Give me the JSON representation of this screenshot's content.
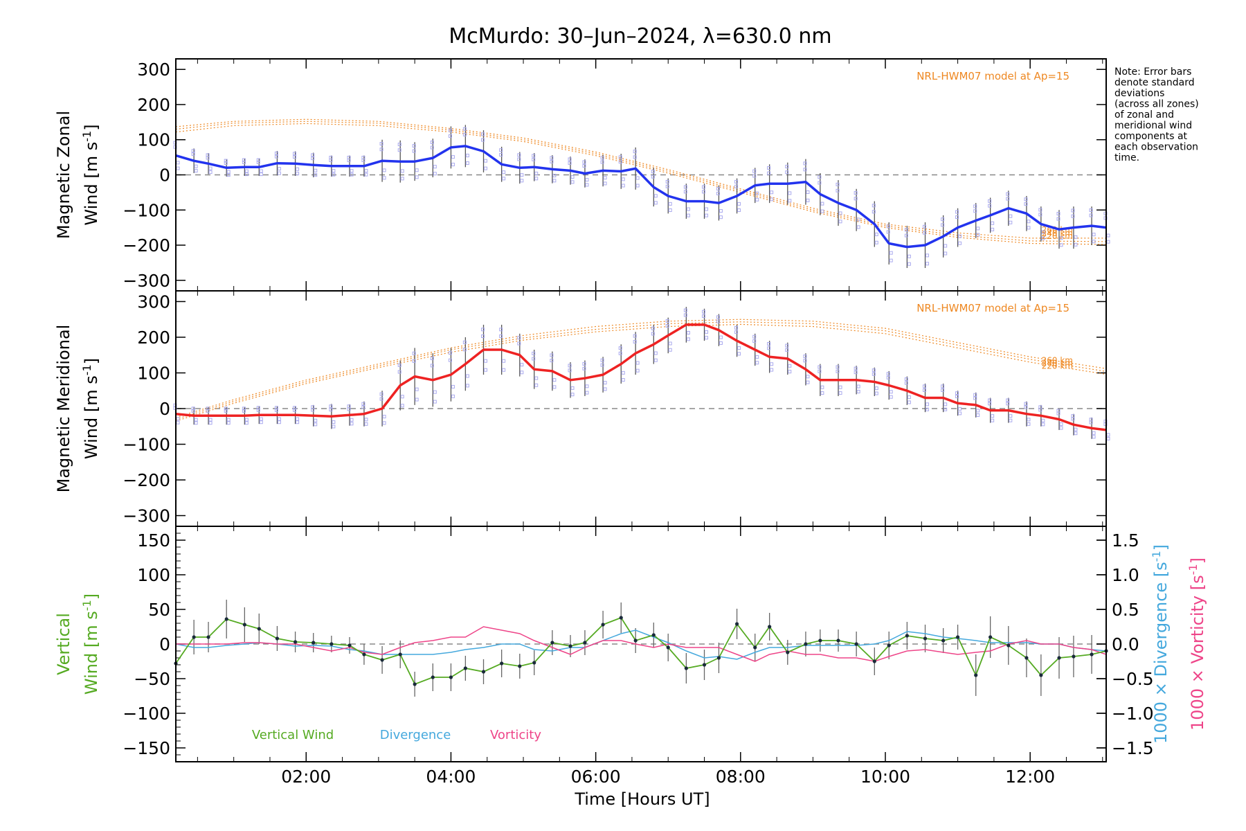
{
  "title": "McMurdo: 30–Jun–2024, λ=630.0 nm",
  "note": [
    "Note: Error bars",
    "denote standard",
    "deviations",
    "(across all zones)",
    "of zonal and",
    "meridional wind",
    "components at",
    "each observation",
    "time."
  ],
  "xaxis": {
    "label": "Time [Hours UT]",
    "range": [
      0.2,
      13.05
    ],
    "ticks": [
      2,
      4,
      6,
      8,
      10,
      12
    ],
    "tick_labels": [
      "02:00",
      "04:00",
      "06:00",
      "08:00",
      "10:00",
      "12:00"
    ]
  },
  "colors": {
    "zonal": "#2233ee",
    "meridional": "#ee2222",
    "model": "#ee8822",
    "vertical": "#55aa22",
    "divergence": "#44a8dd",
    "vorticity": "#ee4488",
    "zone_dots": "#aaaaee",
    "axis": "#000000"
  },
  "chart_data": [
    {
      "type": "line",
      "panel": "zonal",
      "ylabel": [
        "Magnetic Zonal",
        "Wind [m s",
        "-1",
        "]"
      ],
      "ylim": [
        -330,
        330
      ],
      "yticks": [
        -300,
        -200,
        -100,
        0,
        100,
        200,
        300
      ],
      "model_label": "NRL-HWM07 model at Ap=15",
      "model_altitudes": [
        "260 km",
        "240 km",
        "220 km"
      ],
      "x": [
        0.2,
        0.45,
        0.65,
        0.9,
        1.15,
        1.35,
        1.6,
        1.85,
        2.1,
        2.35,
        2.6,
        2.8,
        3.05,
        3.3,
        3.5,
        3.75,
        4.0,
        4.2,
        4.45,
        4.7,
        4.95,
        5.15,
        5.4,
        5.65,
        5.85,
        6.1,
        6.35,
        6.55,
        6.8,
        7.0,
        7.25,
        7.5,
        7.7,
        7.95,
        8.2,
        8.4,
        8.65,
        8.9,
        9.1,
        9.35,
        9.6,
        9.85,
        10.05,
        10.3,
        10.55,
        10.8,
        11.0,
        11.25,
        11.45,
        11.7,
        11.95,
        12.15,
        12.4,
        12.6,
        12.85,
        13.05
      ],
      "y": [
        55,
        40,
        32,
        20,
        22,
        22,
        33,
        32,
        28,
        25,
        25,
        25,
        40,
        38,
        38,
        48,
        78,
        82,
        67,
        30,
        20,
        22,
        16,
        12,
        4,
        12,
        10,
        18,
        -35,
        -60,
        -75,
        -75,
        -80,
        -60,
        -30,
        -25,
        -25,
        -20,
        -55,
        -80,
        -100,
        -140,
        -195,
        -205,
        -200,
        -175,
        -150,
        -130,
        -115,
        -95,
        -110,
        -140,
        -155,
        -150,
        -145,
        -150
      ],
      "err": [
        45,
        35,
        30,
        25,
        25,
        25,
        35,
        35,
        35,
        30,
        30,
        30,
        60,
        60,
        55,
        55,
        60,
        60,
        60,
        50,
        45,
        40,
        40,
        40,
        40,
        45,
        50,
        60,
        55,
        50,
        50,
        50,
        50,
        50,
        50,
        55,
        60,
        65,
        60,
        65,
        60,
        65,
        60,
        60,
        65,
        60,
        55,
        50,
        50,
        50,
        50,
        50,
        55,
        60,
        55,
        50
      ],
      "model": [
        {
          "altitude": "260 km",
          "x": [
            0.2,
            1,
            2,
            3,
            4,
            5,
            6,
            7,
            8,
            9,
            10,
            11,
            12,
            13.05
          ],
          "y": [
            137,
            152,
            158,
            152,
            132,
            105,
            65,
            15,
            -40,
            -95,
            -140,
            -165,
            -180,
            -180
          ]
        },
        {
          "altitude": "240 km",
          "x": [
            0.2,
            1,
            2,
            3,
            4,
            5,
            6,
            7,
            8,
            9,
            10,
            11,
            12,
            13.05
          ],
          "y": [
            130,
            147,
            152,
            147,
            127,
            100,
            60,
            10,
            -45,
            -100,
            -145,
            -172,
            -188,
            -190
          ]
        },
        {
          "altitude": "220 km",
          "x": [
            0.2,
            1,
            2,
            3,
            4,
            5,
            6,
            7,
            8,
            9,
            10,
            11,
            12,
            13.05
          ],
          "y": [
            122,
            140,
            146,
            140,
            122,
            95,
            55,
            5,
            -50,
            -105,
            -150,
            -178,
            -195,
            -198
          ]
        }
      ]
    },
    {
      "type": "line",
      "panel": "meridional",
      "ylabel": [
        "Magnetic Meridional",
        "Wind [m s",
        "-1",
        "]"
      ],
      "ylim": [
        -330,
        330
      ],
      "yticks": [
        -300,
        -200,
        -100,
        0,
        100,
        200,
        300
      ],
      "model_label": "NRL-HWM07 model at Ap=15",
      "model_altitudes": [
        "260 km",
        "240 km",
        "220 km"
      ],
      "x": [
        0.2,
        0.45,
        0.65,
        0.9,
        1.15,
        1.35,
        1.6,
        1.85,
        2.1,
        2.35,
        2.6,
        2.8,
        3.05,
        3.3,
        3.5,
        3.75,
        4.0,
        4.2,
        4.45,
        4.7,
        4.95,
        5.15,
        5.4,
        5.65,
        5.85,
        6.1,
        6.35,
        6.55,
        6.8,
        7.0,
        7.25,
        7.5,
        7.7,
        7.95,
        8.2,
        8.4,
        8.65,
        8.9,
        9.1,
        9.35,
        9.6,
        9.85,
        10.05,
        10.3,
        10.55,
        10.8,
        11.0,
        11.25,
        11.45,
        11.7,
        11.95,
        12.15,
        12.4,
        12.6,
        12.85,
        13.05
      ],
      "y": [
        -15,
        -20,
        -20,
        -20,
        -20,
        -18,
        -18,
        -18,
        -20,
        -22,
        -18,
        -15,
        0,
        65,
        90,
        80,
        95,
        125,
        165,
        165,
        150,
        110,
        105,
        80,
        85,
        95,
        125,
        155,
        180,
        205,
        235,
        235,
        220,
        190,
        165,
        145,
        140,
        110,
        80,
        80,
        80,
        75,
        65,
        50,
        30,
        30,
        15,
        10,
        -5,
        -5,
        -15,
        -20,
        -30,
        -45,
        -55,
        -60
      ],
      "err": [
        30,
        25,
        25,
        25,
        25,
        25,
        25,
        25,
        30,
        35,
        30,
        35,
        50,
        70,
        80,
        75,
        75,
        75,
        70,
        70,
        60,
        55,
        55,
        50,
        50,
        50,
        55,
        60,
        55,
        50,
        50,
        45,
        45,
        45,
        45,
        45,
        45,
        45,
        45,
        45,
        40,
        40,
        40,
        40,
        40,
        40,
        35,
        35,
        35,
        35,
        35,
        30,
        30,
        30,
        30,
        30
      ],
      "model": [
        {
          "altitude": "260 km",
          "x": [
            0.2,
            1,
            2,
            3,
            4,
            5,
            6,
            7,
            8,
            9,
            10,
            11,
            12,
            13.05
          ],
          "y": [
            -25,
            25,
            80,
            125,
            170,
            205,
            230,
            245,
            250,
            245,
            225,
            185,
            145,
            112
          ]
        },
        {
          "altitude": "240 km",
          "x": [
            0.2,
            1,
            2,
            3,
            4,
            5,
            6,
            7,
            8,
            9,
            10,
            11,
            12,
            13.05
          ],
          "y": [
            -30,
            20,
            75,
            120,
            165,
            198,
            222,
            238,
            243,
            238,
            218,
            178,
            138,
            104
          ]
        },
        {
          "altitude": "220 km",
          "x": [
            0.2,
            1,
            2,
            3,
            4,
            5,
            6,
            7,
            8,
            9,
            10,
            11,
            12,
            13.05
          ],
          "y": [
            -35,
            15,
            70,
            115,
            158,
            192,
            215,
            230,
            236,
            230,
            210,
            170,
            130,
            96
          ]
        }
      ]
    },
    {
      "type": "line",
      "panel": "vertical",
      "ylabel": [
        "Vertical",
        "Wind [m s",
        "-1",
        "]"
      ],
      "ylim": [
        -170,
        170
      ],
      "yticks": [
        -150,
        -100,
        -50,
        0,
        50,
        100,
        150
      ],
      "y2label_divergence": [
        "1000 × Divergence [s",
        "-1",
        "]"
      ],
      "y2label_vorticity": [
        "1000 × Vorticity [s",
        "-1",
        "]"
      ],
      "y2lim": [
        -1.7,
        1.7
      ],
      "y2ticks": [
        -1.5,
        -1.0,
        -0.5,
        0.0,
        0.5,
        1.0,
        1.5
      ],
      "y2tick_labels": [
        "−1.5",
        "−1.0",
        "−0.5",
        "0.0",
        "0.5",
        "1.0",
        "1.5"
      ],
      "legend": [
        "Vertical Wind",
        "Divergence",
        "Vorticity"
      ],
      "series": [
        {
          "name": "Vertical Wind",
          "x": [
            0.2,
            0.45,
            0.65,
            0.9,
            1.15,
            1.35,
            1.6,
            1.85,
            2.1,
            2.35,
            2.6,
            2.8,
            3.05,
            3.3,
            3.5,
            3.75,
            4.0,
            4.2,
            4.45,
            4.7,
            4.95,
            5.15,
            5.4,
            5.65,
            5.85,
            6.1,
            6.35,
            6.55,
            6.8,
            7.0,
            7.25,
            7.5,
            7.7,
            7.95,
            8.2,
            8.4,
            8.65,
            8.9,
            9.1,
            9.35,
            9.6,
            9.85,
            10.05,
            10.3,
            10.55,
            10.8,
            11.0,
            11.25,
            11.45,
            11.7,
            11.95,
            12.15,
            12.4,
            12.6,
            12.85,
            13.05
          ],
          "y": [
            -28,
            10,
            10,
            36,
            28,
            22,
            8,
            3,
            2,
            0,
            -2,
            -15,
            -23,
            -15,
            -58,
            -48,
            -48,
            -35,
            -40,
            -28,
            -32,
            -27,
            2,
            -3,
            2,
            28,
            38,
            5,
            13,
            -5,
            -35,
            -30,
            -20,
            29,
            -5,
            25,
            -12,
            0,
            5,
            5,
            0,
            -25,
            -2,
            12,
            8,
            5,
            10,
            -45,
            10,
            -2,
            -20,
            -45,
            -20,
            -18,
            -15,
            -10
          ],
          "err": [
            20,
            25,
            22,
            28,
            25,
            22,
            18,
            15,
            14,
            12,
            12,
            15,
            20,
            20,
            18,
            20,
            20,
            18,
            18,
            20,
            18,
            18,
            18,
            16,
            18,
            20,
            22,
            18,
            18,
            20,
            22,
            22,
            22,
            22,
            20,
            20,
            18,
            18,
            16,
            16,
            18,
            20,
            20,
            20,
            20,
            18,
            18,
            30,
            30,
            28,
            28,
            30,
            30,
            30,
            28,
            28
          ]
        },
        {
          "name": "Divergence",
          "x": [
            0.2,
            0.45,
            0.65,
            0.9,
            1.15,
            1.35,
            1.6,
            1.85,
            2.1,
            2.35,
            2.6,
            2.8,
            3.05,
            3.3,
            3.5,
            3.75,
            4.0,
            4.2,
            4.45,
            4.7,
            4.95,
            5.15,
            5.4,
            5.65,
            5.85,
            6.1,
            6.35,
            6.55,
            6.8,
            7.0,
            7.25,
            7.5,
            7.7,
            7.95,
            8.2,
            8.4,
            8.65,
            8.9,
            9.1,
            9.35,
            9.6,
            9.85,
            10.05,
            10.3,
            10.55,
            10.8,
            11.0,
            11.25,
            11.45,
            11.7,
            11.95,
            12.15,
            12.4,
            12.6,
            12.85,
            13.05
          ],
          "y": [
            0.0,
            -0.05,
            -0.05,
            -0.02,
            0.0,
            0.02,
            0.0,
            -0.03,
            -0.02,
            -0.03,
            -0.08,
            -0.1,
            -0.15,
            -0.15,
            -0.15,
            -0.15,
            -0.12,
            -0.08,
            -0.05,
            0.0,
            0.0,
            -0.08,
            -0.1,
            -0.05,
            -0.05,
            0.05,
            0.15,
            0.2,
            0.1,
            0.02,
            -0.1,
            -0.2,
            -0.18,
            -0.22,
            -0.12,
            -0.05,
            -0.05,
            -0.02,
            -0.02,
            -0.02,
            -0.02,
            0.0,
            0.05,
            0.18,
            0.15,
            0.1,
            0.08,
            0.05,
            0.02,
            0.02,
            0.02,
            0.0,
            0.0,
            -0.05,
            -0.08,
            -0.1
          ],
          "stroke_width": 1.5
        },
        {
          "name": "Vorticity",
          "x": [
            0.2,
            0.45,
            0.65,
            0.9,
            1.15,
            1.35,
            1.6,
            1.85,
            2.1,
            2.35,
            2.6,
            2.8,
            3.05,
            3.3,
            3.5,
            3.75,
            4.0,
            4.2,
            4.45,
            4.7,
            4.95,
            5.15,
            5.4,
            5.65,
            5.85,
            6.1,
            6.35,
            6.55,
            6.8,
            7.0,
            7.25,
            7.5,
            7.7,
            7.95,
            8.2,
            8.4,
            8.65,
            8.9,
            9.1,
            9.35,
            9.6,
            9.85,
            10.05,
            10.3,
            10.55,
            10.8,
            11.0,
            11.25,
            11.45,
            11.7,
            11.95,
            12.15,
            12.4,
            12.6,
            12.85,
            13.05
          ],
          "y": [
            0.0,
            0.0,
            0.0,
            0.0,
            0.02,
            0.02,
            0.0,
            0.0,
            -0.05,
            -0.1,
            -0.05,
            -0.12,
            -0.15,
            -0.05,
            0.02,
            0.05,
            0.1,
            0.1,
            0.25,
            0.2,
            0.15,
            0.05,
            -0.05,
            -0.15,
            -0.05,
            0.05,
            0.05,
            0.0,
            -0.05,
            0.0,
            -0.05,
            -0.05,
            -0.05,
            -0.15,
            -0.25,
            -0.15,
            -0.1,
            -0.15,
            -0.15,
            -0.2,
            -0.2,
            -0.25,
            -0.18,
            -0.1,
            -0.08,
            -0.12,
            -0.15,
            -0.12,
            -0.1,
            0.0,
            0.05,
            0.0,
            0.0,
            -0.05,
            -0.08,
            -0.15
          ],
          "stroke_width": 1.5
        }
      ]
    }
  ]
}
